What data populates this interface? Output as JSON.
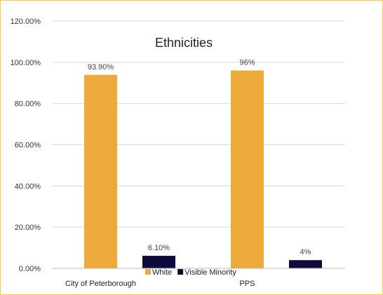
{
  "chart_data": {
    "type": "bar",
    "title": "Ethnicities",
    "categories": [
      "City of Peterborough",
      "PPS"
    ],
    "series": [
      {
        "name": "White",
        "color": "#EBAA39",
        "values": [
          93.9,
          96
        ],
        "labels": [
          "93.90%",
          "96%"
        ]
      },
      {
        "name": "Visible Minority",
        "color": "#0F0A3C",
        "values": [
          6.1,
          4
        ],
        "labels": [
          "6.10%",
          "4%"
        ]
      }
    ],
    "ylim": [
      0,
      120
    ],
    "yticks": [
      {
        "value": 0,
        "label": "0.00%"
      },
      {
        "value": 20,
        "label": "20.00%"
      },
      {
        "value": 40,
        "label": "40.00%"
      },
      {
        "value": 60,
        "label": "60.00%"
      },
      {
        "value": 80,
        "label": "80.00%"
      },
      {
        "value": 100,
        "label": "100.00%"
      },
      {
        "value": 120,
        "label": "120.00%"
      }
    ],
    "grid": true,
    "legend_position": "bottom"
  }
}
